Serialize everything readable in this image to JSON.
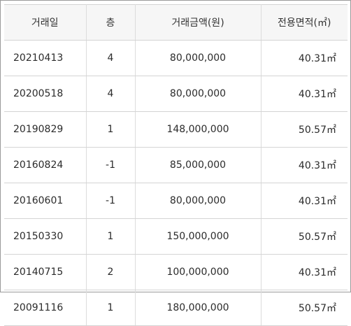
{
  "table": {
    "headers": {
      "date": "거래일",
      "floor": "층",
      "amount": "거래금액(원)",
      "area": "전용면적(㎡)"
    },
    "rows": [
      {
        "date": "20210413",
        "floor": "4",
        "amount": "80,000,000",
        "area": "40.31㎡"
      },
      {
        "date": "20200518",
        "floor": "4",
        "amount": "80,000,000",
        "area": "40.31㎡"
      },
      {
        "date": "20190829",
        "floor": "1",
        "amount": "148,000,000",
        "area": "50.57㎡"
      },
      {
        "date": "20160824",
        "floor": "-1",
        "amount": "85,000,000",
        "area": "40.31㎡"
      },
      {
        "date": "20160601",
        "floor": "-1",
        "amount": "80,000,000",
        "area": "40.31㎡"
      },
      {
        "date": "20150330",
        "floor": "1",
        "amount": "150,000,000",
        "area": "50.57㎡"
      },
      {
        "date": "20140715",
        "floor": "2",
        "amount": "100,000,000",
        "area": "40.31㎡"
      },
      {
        "date": "20091116",
        "floor": "1",
        "amount": "180,000,000",
        "area": "50.57㎡"
      }
    ]
  }
}
